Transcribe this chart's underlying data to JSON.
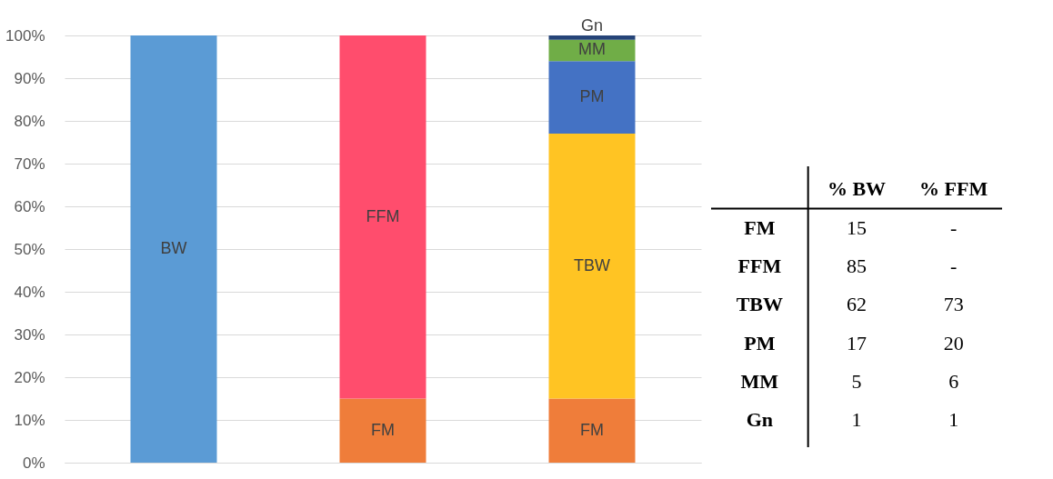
{
  "chart_data": [
    {
      "type": "bar",
      "stacked": true,
      "categories": [
        null,
        null,
        null
      ],
      "series": [
        {
          "name": "FM",
          "color": "#ef7d3a",
          "values": [
            null,
            15,
            15
          ]
        },
        {
          "name": "BW",
          "color": "#5b9bd5",
          "values": [
            100,
            null,
            null
          ]
        },
        {
          "name": "FFM",
          "color": "#ff4d6d",
          "values": [
            null,
            85,
            null
          ]
        },
        {
          "name": "TBW",
          "color": "#ffc423",
          "values": [
            null,
            null,
            62
          ]
        },
        {
          "name": "PM",
          "color": "#4472c4",
          "values": [
            null,
            null,
            17
          ]
        },
        {
          "name": "MM",
          "color": "#70ad47",
          "values": [
            null,
            null,
            5
          ]
        },
        {
          "name": "Gn",
          "color": "#264478",
          "values": [
            null,
            null,
            1
          ]
        }
      ],
      "ylim": [
        0,
        100
      ],
      "yticks": [
        {
          "value": 0,
          "label": "0%"
        },
        {
          "value": 10,
          "label": "10%"
        },
        {
          "value": 20,
          "label": "20%"
        },
        {
          "value": 30,
          "label": "30%"
        },
        {
          "value": 40,
          "label": "40%"
        },
        {
          "value": 50,
          "label": "50%"
        },
        {
          "value": 60,
          "label": "60%"
        },
        {
          "value": 70,
          "label": "70%"
        },
        {
          "value": 80,
          "label": "80%"
        },
        {
          "value": 90,
          "label": "90%"
        },
        {
          "value": 100,
          "label": "100%"
        }
      ],
      "grid": "y"
    },
    {
      "type": "other",
      "categories": [
        "% BW",
        "% FFM"
      ],
      "y_categories": [
        "FM",
        "FFM",
        "TBW",
        "PM",
        "MM",
        "Gn"
      ],
      "cell_labels": [
        [
          "15",
          "-"
        ],
        [
          "85",
          "-"
        ],
        [
          "62",
          "73"
        ],
        [
          "17",
          "20"
        ],
        [
          "5",
          "6"
        ],
        [
          "1",
          "1"
        ]
      ]
    }
  ]
}
